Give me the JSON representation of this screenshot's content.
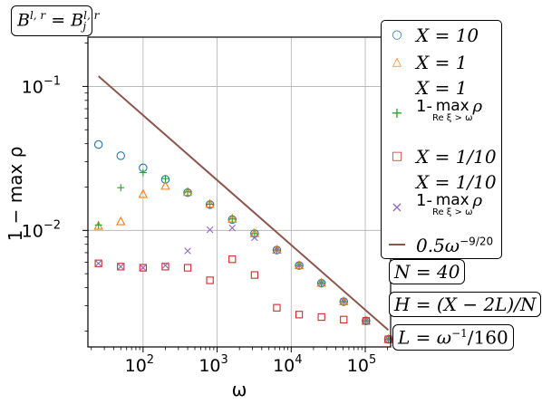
{
  "chart_data": {
    "type": "scatter",
    "title": "",
    "xlabel": "ω",
    "ylabel": "1 − max ρ",
    "xscale": "log",
    "yscale": "log",
    "xlim": [
      18,
      220000
    ],
    "ylim": [
      0.00155,
      0.22
    ],
    "grid": true,
    "x_ticks": [
      {
        "v": 100,
        "base": "10",
        "exp": "2"
      },
      {
        "v": 1000,
        "base": "10",
        "exp": "3"
      },
      {
        "v": 10000,
        "base": "10",
        "exp": "4"
      },
      {
        "v": 100000,
        "base": "10",
        "exp": "5"
      }
    ],
    "y_ticks": [
      {
        "v": 0.1,
        "base": "10",
        "exp": "−1"
      },
      {
        "v": 0.01,
        "base": "10",
        "exp": "−2"
      }
    ],
    "series": [
      {
        "name": "X = 10",
        "marker": "circle",
        "color": "#1f77b4",
        "x": [
          25,
          50,
          100,
          200,
          400,
          800,
          1600,
          3200,
          6400,
          12800,
          25600,
          51200,
          102400,
          204800
        ],
        "y": [
          0.0395,
          0.033,
          0.0272,
          0.0226,
          0.0183,
          0.0151,
          0.0119,
          0.0095,
          0.0073,
          0.0057,
          0.0043,
          0.0032,
          0.00235,
          0.00175
        ]
      },
      {
        "name": "X = 1",
        "marker": "triangle",
        "color": "#ff7f0e",
        "x": [
          25,
          50,
          100,
          200,
          400,
          800,
          1600,
          3200,
          6400,
          12800,
          25600,
          51200,
          102400,
          204800
        ],
        "y": [
          0.0107,
          0.0115,
          0.0178,
          0.0203,
          0.0184,
          0.0152,
          0.012,
          0.0095,
          0.0073,
          0.0057,
          0.0043,
          0.0032,
          0.00235,
          0.00175
        ]
      },
      {
        "name": "X = 1, 1- max_{Re ξ > ω} ρ",
        "marker": "plus",
        "color": "#2ca02c",
        "x": [
          25,
          50,
          100,
          200,
          400,
          800,
          1600,
          3200,
          6400,
          12800,
          25600,
          51200,
          102400,
          204800
        ],
        "y": [
          0.0109,
          0.0198,
          0.0252,
          0.0229,
          0.0185,
          0.0152,
          0.012,
          0.0095,
          0.0073,
          0.0057,
          0.0043,
          0.0032,
          0.00235,
          0.00175
        ]
      },
      {
        "name": "X = 1/10",
        "marker": "square",
        "color": "#d62728",
        "x": [
          25,
          50,
          100,
          200,
          400,
          800,
          1600,
          3200,
          6400,
          12800,
          25600,
          51200,
          102400,
          204800
        ],
        "y": [
          0.0059,
          0.0056,
          0.0055,
          0.0056,
          0.0055,
          0.0045,
          0.0063,
          0.0049,
          0.0029,
          0.0026,
          0.0025,
          0.0024,
          0.00235,
          0.00175
        ]
      },
      {
        "name": "X = 1/10, 1- max_{Re ξ > ω} ρ",
        "marker": "x",
        "color": "#9467bd",
        "x": [
          25,
          50,
          100,
          200,
          400,
          800,
          1600,
          3200,
          6400,
          12800,
          25600,
          51200,
          102400,
          204800
        ],
        "y": [
          0.0059,
          0.0056,
          0.0055,
          0.0057,
          0.0072,
          0.0101,
          0.0104,
          0.0089,
          0.0073,
          0.0057,
          0.0043,
          0.0032,
          0.00235,
          0.00175
        ]
      },
      {
        "name": "0.5ω^{−9/20}",
        "marker": "line",
        "color": "#8c564b",
        "x": [
          25,
          204800
        ],
        "y": [
          0.1178,
          0.00203
        ]
      }
    ]
  },
  "annotations": {
    "top_left": {
      "lhs": "B",
      "lhs_sup": "l, r",
      "eq": " = ",
      "rhs": "B",
      "rhs_sub": "j",
      "rhs_sup": "l, r"
    },
    "n_label": "N = 40",
    "h_label": "H = (X − 2L)/N",
    "l_label": "L = ω",
    "l_exp": "−1",
    "l_tail": "/160"
  },
  "legend": {
    "entries": [
      {
        "line1": "X = 10"
      },
      {
        "line1": "X = 1"
      },
      {
        "line1": "X = 1",
        "line2_pre": "1-",
        "line2_op": "max",
        "line2_sub": "Re ξ > ω",
        "line2_post": "ρ"
      },
      {
        "line1": "X = 1/10"
      },
      {
        "line1": "X = 1/10",
        "line2_pre": "1-",
        "line2_op": "max",
        "line2_sub": "Re ξ > ω",
        "line2_post": "ρ"
      },
      {
        "line1": "0.5ω",
        "line1_sup": "−9/20"
      }
    ]
  }
}
